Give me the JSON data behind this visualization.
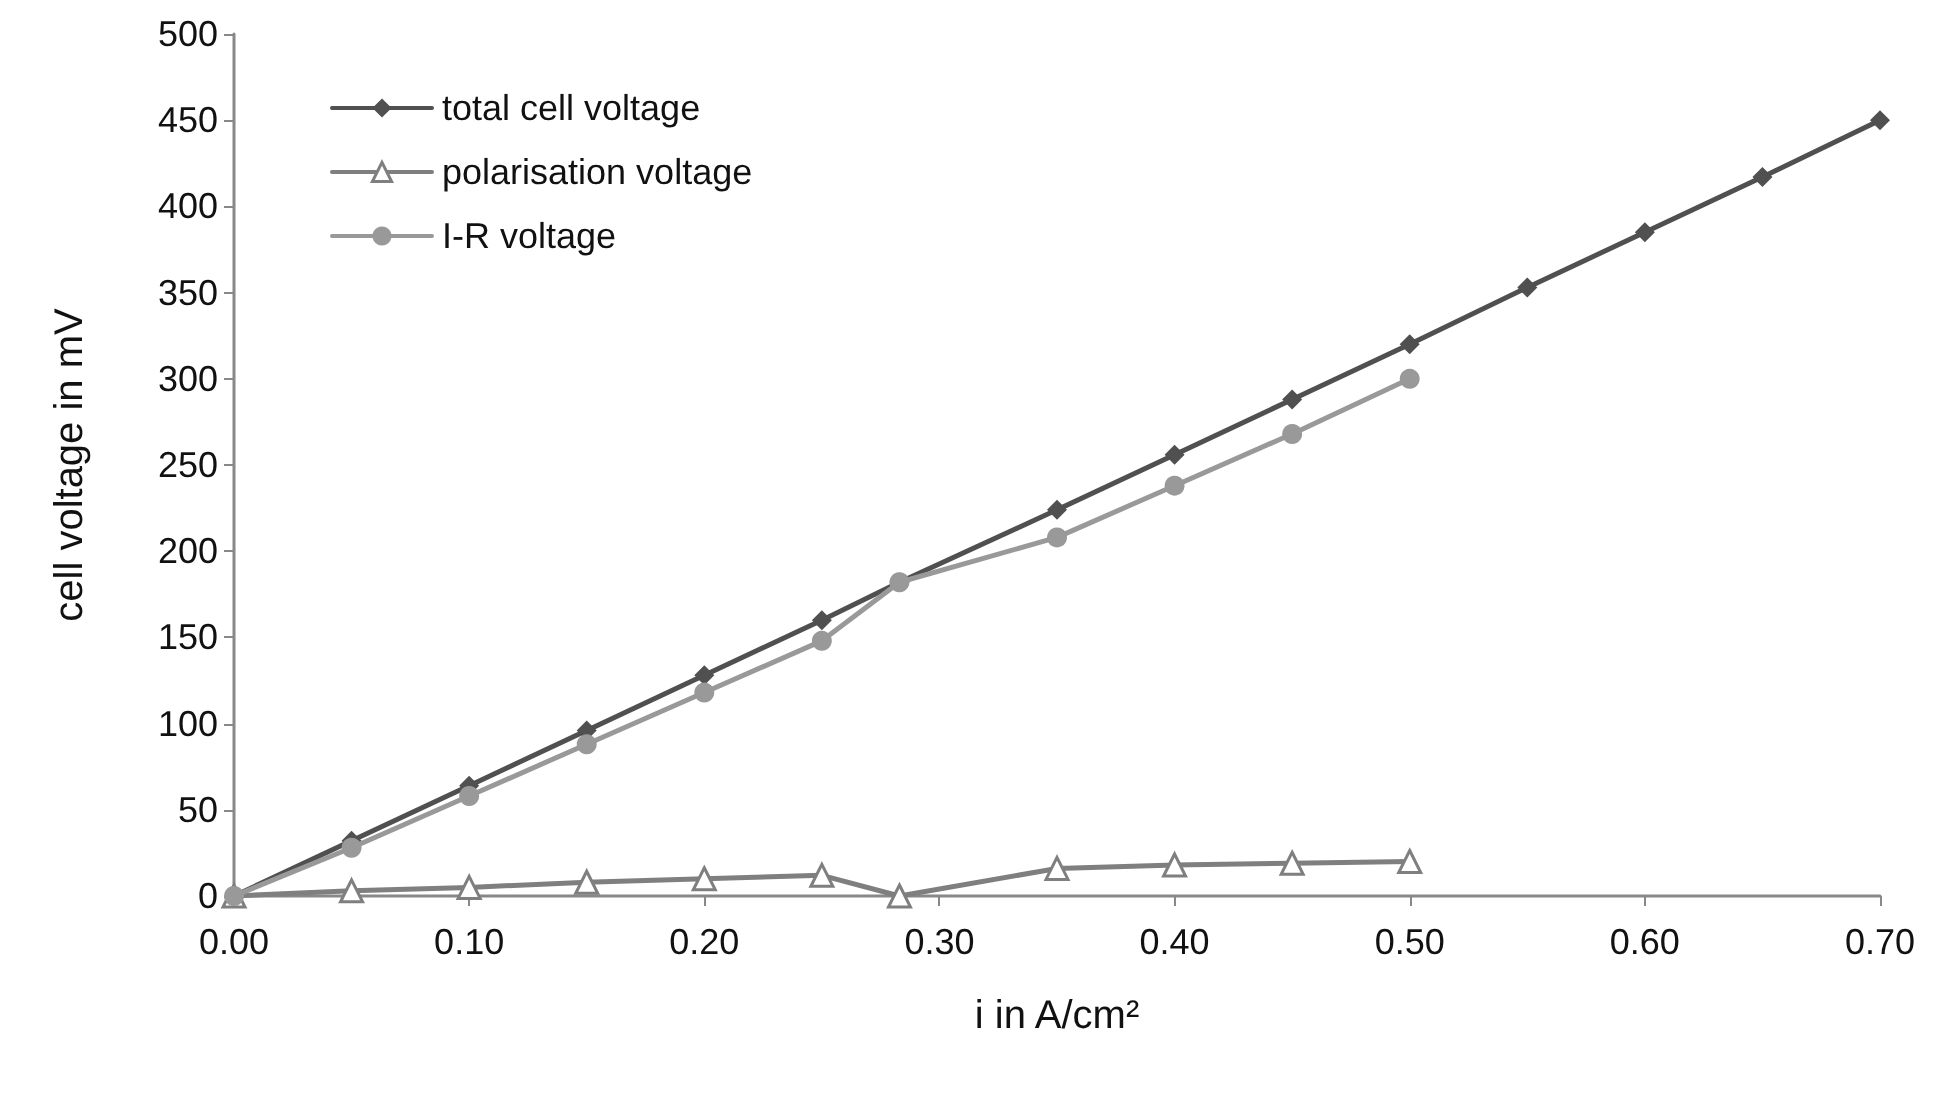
{
  "chart_data": {
    "type": "line",
    "xlabel": "i in A/cm²",
    "ylabel": "cell voltage in mV",
    "xlim": [
      0,
      0.7
    ],
    "xticks": [
      {
        "value": 0,
        "label": "0.00"
      },
      {
        "value": 0.1,
        "label": "0.10"
      },
      {
        "value": 0.2,
        "label": "0.20"
      },
      {
        "value": 0.3,
        "label": "0.30"
      },
      {
        "value": 0.4,
        "label": "0.40"
      },
      {
        "value": 0.5,
        "label": "0.50"
      },
      {
        "value": 0.6,
        "label": "0.60"
      },
      {
        "value": 0.7,
        "label": "0.70"
      }
    ],
    "ylim": [
      0,
      500
    ],
    "yticks": [
      0,
      50,
      100,
      150,
      200,
      250,
      300,
      350,
      400,
      450,
      500
    ],
    "grid": false,
    "legend": "top left",
    "series": [
      {
        "name": "total cell voltage",
        "color": "#505050",
        "marker": "diamond",
        "x": [
          0,
          0.05,
          0.1,
          0.15,
          0.2,
          0.25,
          0.283,
          0.35,
          0.4,
          0.45,
          0.5,
          0.55,
          0.6,
          0.65,
          0.7
        ],
        "values": [
          0,
          32,
          64,
          96,
          128,
          160,
          182,
          224,
          256,
          288,
          320,
          353,
          385,
          417,
          450
        ]
      },
      {
        "name": "polarisation voltage",
        "color": "#7f7f7f",
        "marker": "triangle",
        "x": [
          0,
          0.05,
          0.1,
          0.15,
          0.2,
          0.25,
          0.283,
          0.35,
          0.4,
          0.45,
          0.5
        ],
        "values": [
          0,
          3,
          5,
          8,
          10,
          12,
          0,
          16,
          18,
          19,
          20
        ]
      },
      {
        "name": "I-R voltage",
        "color": "#999999",
        "marker": "circle",
        "x": [
          0,
          0.05,
          0.1,
          0.15,
          0.2,
          0.25,
          0.283,
          0.35,
          0.4,
          0.45,
          0.5
        ],
        "values": [
          0,
          28,
          58,
          88,
          118,
          148,
          182,
          208,
          238,
          268,
          300
        ]
      }
    ]
  }
}
